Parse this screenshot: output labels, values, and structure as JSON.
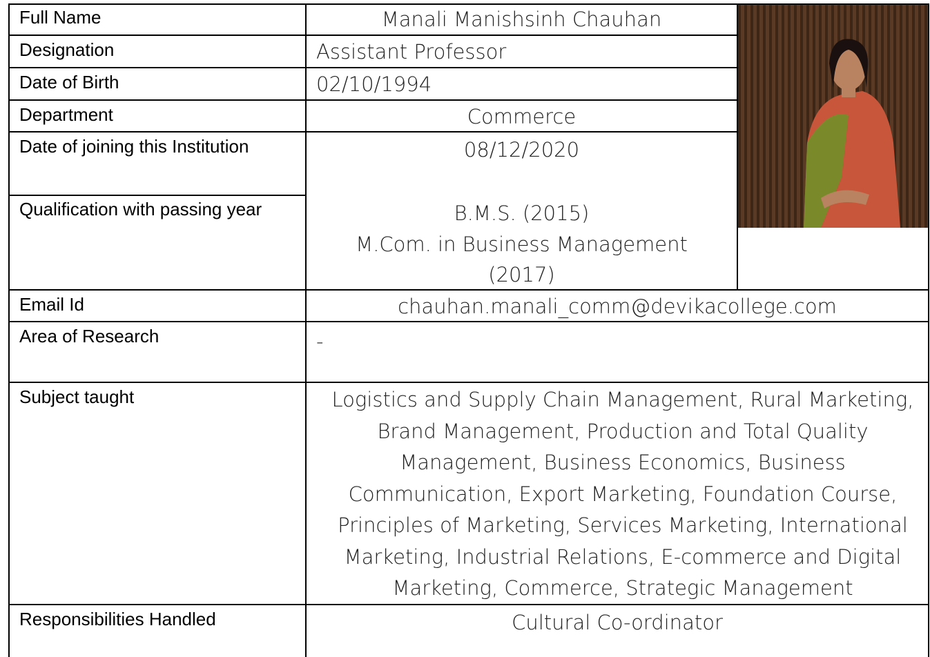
{
  "profile": {
    "rows": [
      {
        "label": "Full Name",
        "value": "Manali Manishsinh Chauhan"
      },
      {
        "label": "Designation",
        "value": "Assistant Professor"
      },
      {
        "label": "Date of Birth",
        "value": "02/10/1994"
      },
      {
        "label": "Department",
        "value": "Commerce"
      },
      {
        "label": "Date of joining this Institution",
        "value": "08/12/2020"
      },
      {
        "label": "Qualification with passing year",
        "value": [
          "B.M.S. (2015)",
          "M.Com. in Business Management (2017)"
        ]
      },
      {
        "label": "Email Id",
        "value": "chauhan.manali_comm@devikacollege.com"
      },
      {
        "label": "Area of Research",
        "value": "-"
      },
      {
        "label": "Subject taught",
        "value": "Logistics and Supply Chain Management, Rural Marketing, Brand Management, Production and Total Quality Management, Business Economics, Business Communication, Export Marketing, Foundation Course, Principles of Marketing, Services Marketing, International Marketing, Industrial Relations, E-commerce and Digital Marketing, Commerce, Strategic Management"
      },
      {
        "label": "Responsibilities Handled",
        "value": "Cultural Co-ordinator"
      }
    ]
  }
}
